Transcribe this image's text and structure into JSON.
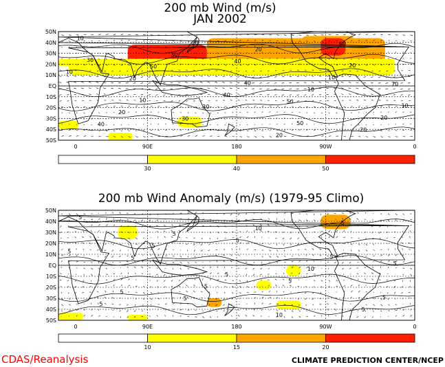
{
  "chart_data": [
    {
      "type": "heatmap",
      "title": "200 mb Wind (m/s)",
      "subtitle": "JAN 2002",
      "x_ticks": [
        "0",
        "90E",
        "180",
        "90W",
        "0"
      ],
      "y_ticks": [
        "50N",
        "40N",
        "30N",
        "20N",
        "10N",
        "EQ",
        "10S",
        "20S",
        "30S",
        "40S",
        "50S"
      ],
      "colorbar": {
        "thresholds": [
          30,
          40,
          50
        ],
        "colors": [
          "#ffffff",
          "#ffff00",
          "#ffa500",
          "#ff2000"
        ]
      },
      "contour_labels": [
        "10",
        "20",
        "30",
        "40",
        "50",
        "60",
        "70",
        "40",
        "50",
        "30",
        "20",
        "10",
        "20",
        "10",
        "20",
        "30",
        "40",
        "20",
        "10",
        "20",
        "30",
        "10",
        "20",
        "40",
        "50",
        "20",
        "10"
      ],
      "shaded_regions": [
        {
          "lon": [
            -30,
            150
          ],
          "lat": [
            18,
            44
          ],
          "level": 40
        },
        {
          "lon": [
            -20,
            10
          ],
          "lat": [
            10,
            25
          ],
          "level": 30
        },
        {
          "lon": [
            70,
            150
          ],
          "lat": [
            20,
            38
          ],
          "level": 50
        },
        {
          "lon": [
            -115,
            -60
          ],
          "lat": [
            20,
            46
          ],
          "level": 40
        },
        {
          "lon": [
            -95,
            -70
          ],
          "lat": [
            28,
            44
          ],
          "level": 50
        },
        {
          "lon": [
            -20,
            0
          ],
          "lat": [
            18,
            25
          ],
          "level": 30
        },
        {
          "lon": [
            120,
            145
          ],
          "lat": [
            -38,
            -28
          ],
          "level": 30
        },
        {
          "lon": [
            0,
            20
          ],
          "lat": [
            -40,
            -32
          ],
          "level": 30
        },
        {
          "lon": [
            50,
            75
          ],
          "lat": [
            -50,
            -43
          ],
          "level": 30
        }
      ]
    },
    {
      "type": "heatmap",
      "title": "200 mb Wind Anomaly (m/s) (1979-95 Climo)",
      "x_ticks": [
        "0",
        "90E",
        "180",
        "90W",
        "0"
      ],
      "y_ticks": [
        "50N",
        "40N",
        "30N",
        "20N",
        "10N",
        "EQ",
        "10S",
        "20S",
        "30S",
        "40S",
        "50S"
      ],
      "colorbar": {
        "thresholds": [
          10,
          15,
          20
        ],
        "colors": [
          "#ffffff",
          "#ffff00",
          "#ffa500",
          "#ff2000"
        ]
      },
      "contour_labels": [
        "5",
        "5",
        "5",
        "5",
        "5",
        "5",
        "5",
        "5",
        "5",
        "5",
        "10",
        "10",
        "5",
        "5",
        "5",
        "5",
        "5",
        "10",
        "5",
        "5"
      ],
      "shaded_regions": [
        {
          "lon": [
            -95,
            -65
          ],
          "lat": [
            33,
            46
          ],
          "level": 15
        },
        {
          "lon": [
            60,
            80
          ],
          "lat": [
            24,
            36
          ],
          "level": 10
        },
        {
          "lon": [
            150,
            165
          ],
          "lat": [
            -38,
            -30
          ],
          "level": 15
        },
        {
          "lon": [
            -130,
            -115
          ],
          "lat": [
            -10,
            0
          ],
          "level": 10
        },
        {
          "lon": [
            -160,
            -145
          ],
          "lat": [
            -22,
            -14
          ],
          "level": 10
        },
        {
          "lon": [
            0,
            25
          ],
          "lat": [
            -50,
            -43
          ],
          "level": 10
        },
        {
          "lon": [
            70,
            90
          ],
          "lat": [
            -50,
            -45
          ],
          "level": 10
        },
        {
          "lon": [
            -140,
            -115
          ],
          "lat": [
            -40,
            -32
          ],
          "level": 10
        }
      ]
    }
  ],
  "footer": {
    "left": "CDAS/Reanalysis",
    "right": "CLIMATE PREDICTION CENTER/NCEP"
  }
}
